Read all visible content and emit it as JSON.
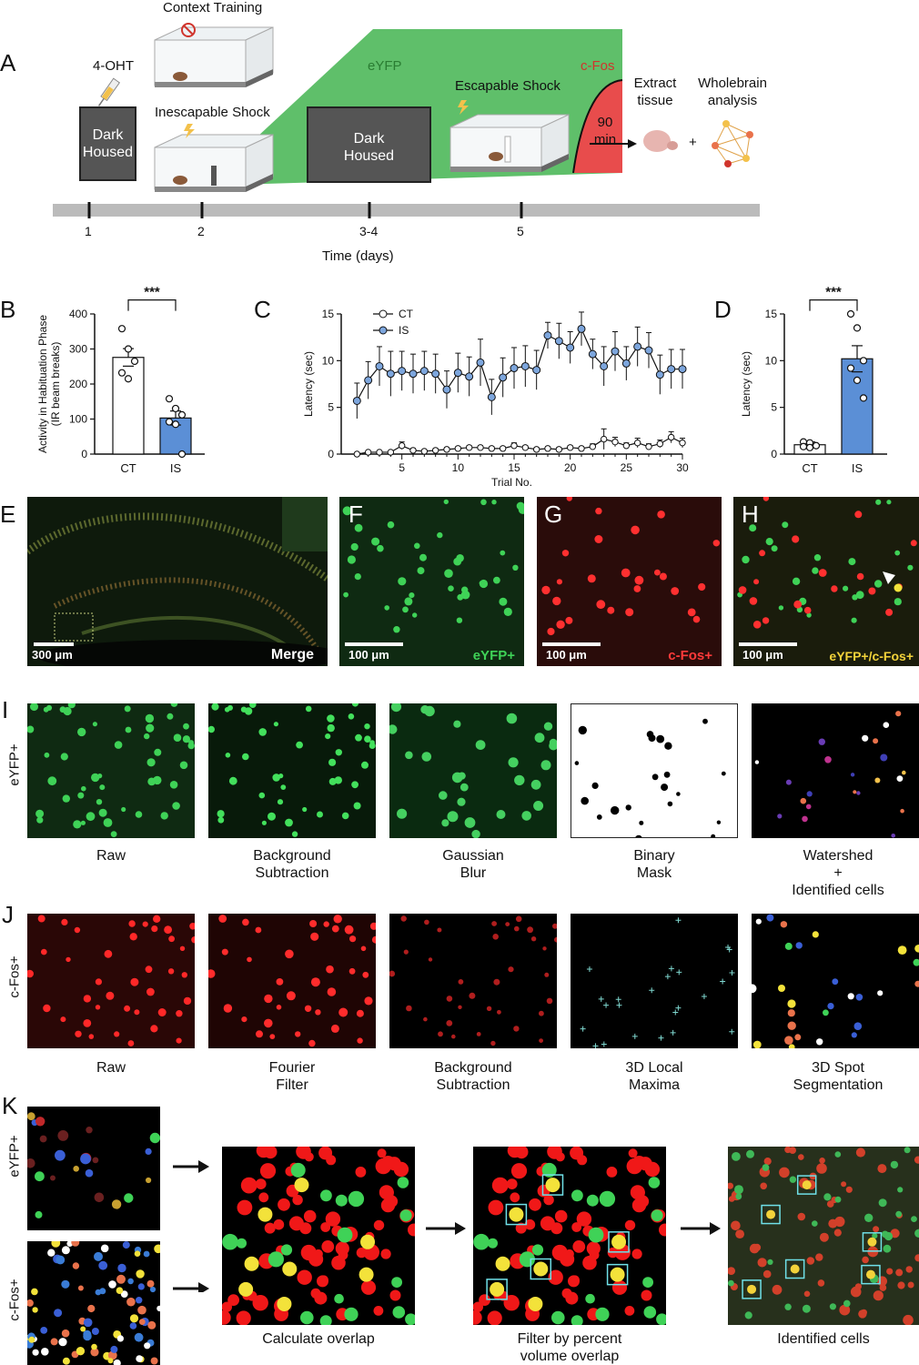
{
  "panel_letters": {
    "A": "A",
    "B": "B",
    "C": "C",
    "D": "D",
    "E": "E",
    "F": "F",
    "G": "G",
    "H": "H",
    "I": "I",
    "J": "J",
    "K": "K"
  },
  "timeline": {
    "context_training": "Context Training",
    "ohtlabel": "4-OHT",
    "dark_housed_1": "Dark\nHoused",
    "inescapable_shock": "Inescapable Shock",
    "eyfp": "eYFP",
    "dark_housed_2": "Dark\nHoused",
    "escapable_shock": "Escapable Shock",
    "cfos": "c-Fos",
    "ninety_min": "90\nmin",
    "extract_tissue": "Extract\ntissue",
    "wholebrain": "Wholebrain\nanalysis",
    "plus": "+",
    "ticks": [
      "1",
      "2",
      "3-4",
      "5"
    ],
    "axis_label": "Time (days)"
  },
  "chart_data": [
    {
      "id": "B",
      "type": "bar",
      "categories": [
        "CT",
        "IS"
      ],
      "values": [
        276,
        103
      ],
      "errors": [
        25,
        20
      ],
      "points": [
        [
          358,
          300,
          265,
          232,
          215
        ],
        [
          158,
          130,
          112,
          92,
          85,
          0
        ]
      ],
      "ylabel": "Activity in Habituation Phase\n(IR beam breaks)",
      "ylim": [
        0,
        400
      ],
      "yticks": [
        "0",
        "100",
        "200",
        "300",
        "400"
      ],
      "significance": "***",
      "colors": [
        "#ffffff",
        "#5b8fd6"
      ]
    },
    {
      "id": "C",
      "type": "line",
      "xlabel": "Trial No.",
      "ylabel": "Latency (sec)",
      "ylim": [
        0,
        15
      ],
      "xlim": [
        1,
        30
      ],
      "xticks": [
        "5",
        "10",
        "15",
        "20",
        "25",
        "30"
      ],
      "yticks": [
        "0",
        "5",
        "10",
        "15"
      ],
      "series": [
        {
          "name": "CT",
          "values": [
            0.0,
            0.2,
            0.2,
            0.2,
            0.9,
            0.4,
            0.3,
            0.4,
            0.5,
            0.6,
            0.7,
            0.7,
            0.6,
            0.6,
            0.9,
            0.7,
            0.5,
            0.6,
            0.5,
            0.7,
            0.6,
            0.8,
            1.6,
            1.3,
            0.9,
            1.2,
            0.8,
            1.1,
            1.8,
            1.2
          ],
          "errors": [
            0.1,
            0.1,
            0.1,
            0.1,
            0.4,
            0.2,
            0.1,
            0.2,
            0.2,
            0.2,
            0.2,
            0.2,
            0.2,
            0.2,
            0.3,
            0.2,
            0.2,
            0.2,
            0.2,
            0.2,
            0.2,
            0.3,
            1.1,
            0.5,
            0.3,
            0.5,
            0.3,
            0.4,
            0.6,
            0.5
          ],
          "color": "#ffffff"
        },
        {
          "name": "IS",
          "values": [
            5.7,
            7.9,
            9.4,
            8.6,
            8.9,
            8.6,
            8.9,
            8.6,
            6.9,
            8.7,
            8.3,
            9.8,
            6.1,
            8.2,
            9.2,
            9.4,
            9.0,
            12.7,
            12.1,
            11.4,
            13.4,
            10.7,
            9.4,
            11.0,
            9.7,
            11.5,
            11.1,
            8.5,
            9.1,
            9.1
          ],
          "errors": [
            1.9,
            2.0,
            2.1,
            2.4,
            2.1,
            2.1,
            2.1,
            2.1,
            2.0,
            2.1,
            2.1,
            2.5,
            1.9,
            2.1,
            2.2,
            2.2,
            2.1,
            1.4,
            1.9,
            1.7,
            1.8,
            1.6,
            2.1,
            2.1,
            1.8,
            2.1,
            1.9,
            2.1,
            2.1,
            2.1
          ],
          "color": "#7da6dd"
        }
      ]
    },
    {
      "id": "D",
      "type": "bar",
      "categories": [
        "CT",
        "IS"
      ],
      "values": [
        1.0,
        10.2
      ],
      "errors": [
        0.3,
        1.4
      ],
      "points": [
        [
          1.3,
          1.2,
          0.9,
          0.8,
          0.7
        ],
        [
          15.0,
          13.5,
          10.0,
          9.2,
          7.9,
          6.0
        ]
      ],
      "ylabel": "Latency (sec)",
      "ylim": [
        0,
        15
      ],
      "yticks": [
        "0",
        "5",
        "10",
        "15"
      ],
      "significance": "***",
      "colors": [
        "#ffffff",
        "#5b8fd6"
      ]
    }
  ],
  "micro": {
    "E_scale": "300 μm",
    "E_label": "Merge",
    "F_scale": "100 μm",
    "F_label": "eYFP+",
    "G_scale": "100 μm",
    "G_label": "c-Fos+",
    "H_scale": "100 μm",
    "H_label": "eYFP+/c-Fos+"
  },
  "row_I": {
    "side_label": "eYFP+",
    "captions": [
      "Raw",
      "Background\nSubtraction",
      "Gaussian\nBlur",
      "Binary\nMask",
      "Watershed\n+\nIdentified cells"
    ]
  },
  "row_J": {
    "side_label": "c-Fos+",
    "captions": [
      "Raw",
      "Fourier\nFilter",
      "Background\nSubtraction",
      "3D Local\nMaxima",
      "3D Spot\nSegmentation"
    ]
  },
  "row_K": {
    "side_label_top": "eYFP+",
    "side_label_bottom": "c-Fos+",
    "captions": [
      "Calculate overlap",
      "Filter by percent\nvolume overlap",
      "Identified cells"
    ]
  }
}
